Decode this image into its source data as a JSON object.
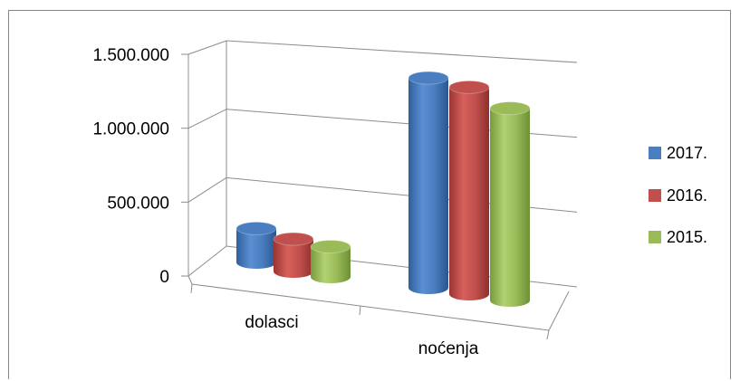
{
  "chart_data": {
    "type": "bar",
    "style": "3d-cylinder",
    "categories": [
      "dolasci",
      "noćenja"
    ],
    "series": [
      {
        "name": "2017.",
        "color": "#4a7ec0",
        "values": [
          230000,
          1420000
        ]
      },
      {
        "name": "2016.",
        "color": "#c0504d",
        "values": [
          220000,
          1400000
        ]
      },
      {
        "name": "2015.",
        "color": "#9bbb59",
        "values": [
          205000,
          1300000
        ]
      }
    ],
    "y_ticks": [
      "0",
      "500.000",
      "1.000.000",
      "1.500.000"
    ],
    "ylim": [
      0,
      1500000
    ],
    "grid": true,
    "legend_position": "right"
  }
}
